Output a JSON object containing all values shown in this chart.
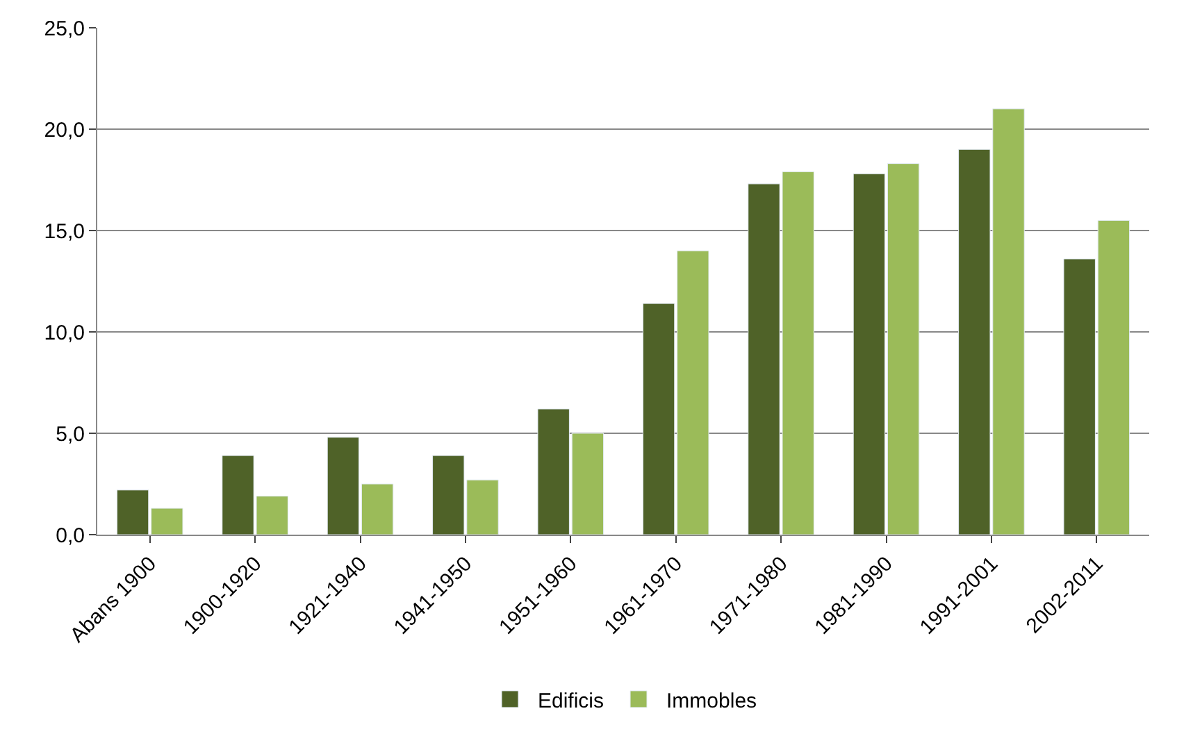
{
  "chart_data": {
    "type": "bar",
    "categories": [
      "Abans 1900",
      "1900-1920",
      "1921-1940",
      "1941-1950",
      "1951-1960",
      "1961-1970",
      "1971-1980",
      "1981-1990",
      "1991-2001",
      "2002-2011"
    ],
    "series": [
      {
        "name": "Edificis",
        "color": "#4f6228",
        "values": [
          2.2,
          3.9,
          4.8,
          3.9,
          6.2,
          11.4,
          17.3,
          17.8,
          19.0,
          13.6
        ]
      },
      {
        "name": "Immobles",
        "color": "#9bbb59",
        "values": [
          1.3,
          1.9,
          2.5,
          2.7,
          5.0,
          14.0,
          17.9,
          18.3,
          21.0,
          15.5
        ]
      }
    ],
    "ylim": [
      0,
      25
    ],
    "yticks": [
      {
        "value": 0,
        "label": "0,0"
      },
      {
        "value": 5,
        "label": "5,0"
      },
      {
        "value": 10,
        "label": "10,0"
      },
      {
        "value": 15,
        "label": "15,0"
      },
      {
        "value": 20,
        "label": "20,0"
      },
      {
        "value": 25,
        "label": "25,0"
      }
    ],
    "grid": "y",
    "legend": "bottom"
  }
}
